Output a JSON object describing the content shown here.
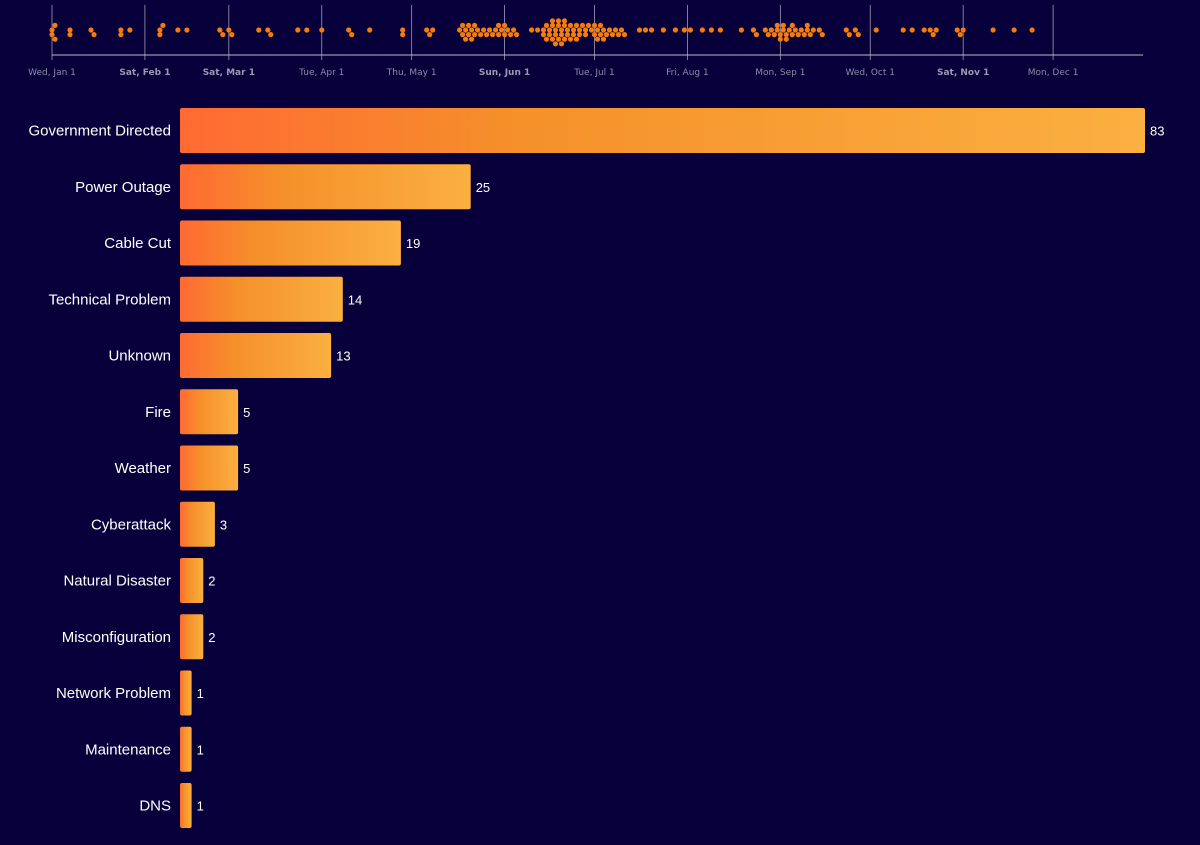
{
  "colors": {
    "background": "#07003a",
    "dot": "#f47b0e",
    "bar_start": "#ff6a33",
    "bar_mid": "#f5902a",
    "bar_end": "#fbb040",
    "gridline": "#b9b9c9",
    "text": "#ffffff"
  },
  "chart_data": [
    {
      "type": "scatter",
      "title": "",
      "x_axis": {
        "kind": "date",
        "range": [
          "2025-01-01",
          "2025-12-31"
        ],
        "ticks": [
          {
            "date": "2025-01-01",
            "label": "Wed, Jan 1",
            "bold": false
          },
          {
            "date": "2025-02-01",
            "label": "Sat, Feb 1",
            "bold": true
          },
          {
            "date": "2025-03-01",
            "label": "Sat, Mar 1",
            "bold": true
          },
          {
            "date": "2025-04-01",
            "label": "Tue, Apr 1",
            "bold": false
          },
          {
            "date": "2025-05-01",
            "label": "Thu, May 1",
            "bold": false
          },
          {
            "date": "2025-06-01",
            "label": "Sun, Jun 1",
            "bold": true
          },
          {
            "date": "2025-07-01",
            "label": "Tue, Jul 1",
            "bold": false
          },
          {
            "date": "2025-08-01",
            "label": "Fri, Aug 1",
            "bold": false
          },
          {
            "date": "2025-09-01",
            "label": "Mon, Sep 1",
            "bold": false
          },
          {
            "date": "2025-10-01",
            "label": "Wed, Oct 1",
            "bold": false
          },
          {
            "date": "2025-11-01",
            "label": "Sat, Nov 1",
            "bold": true
          },
          {
            "date": "2025-12-01",
            "label": "Mon, Dec 1",
            "bold": false
          }
        ]
      },
      "layout": "beeswarm",
      "events": [
        "2025-01-01",
        "2025-01-01",
        "2025-01-02",
        "2025-01-02",
        "2025-01-07",
        "2025-01-07",
        "2025-01-14",
        "2025-01-15",
        "2025-01-24",
        "2025-01-24",
        "2025-01-27",
        "2025-02-06",
        "2025-02-06",
        "2025-02-07",
        "2025-02-12",
        "2025-02-15",
        "2025-02-26",
        "2025-02-27",
        "2025-03-01",
        "2025-03-02",
        "2025-03-11",
        "2025-03-14",
        "2025-03-15",
        "2025-03-24",
        "2025-03-27",
        "2025-04-01",
        "2025-04-10",
        "2025-04-11",
        "2025-04-17",
        "2025-04-28",
        "2025-04-28",
        "2025-05-06",
        "2025-05-07",
        "2025-05-08",
        "2025-05-17",
        "2025-05-18",
        "2025-05-18",
        "2025-05-19",
        "2025-05-19",
        "2025-05-20",
        "2025-05-20",
        "2025-05-21",
        "2025-05-21",
        "2025-05-22",
        "2025-05-22",
        "2025-05-23",
        "2025-05-24",
        "2025-05-25",
        "2025-05-26",
        "2025-05-27",
        "2025-05-28",
        "2025-05-29",
        "2025-05-30",
        "2025-05-30",
        "2025-05-31",
        "2025-06-01",
        "2025-06-01",
        "2025-06-02",
        "2025-06-03",
        "2025-06-04",
        "2025-06-05",
        "2025-06-10",
        "2025-06-12",
        "2025-06-14",
        "2025-06-14",
        "2025-06-15",
        "2025-06-15",
        "2025-06-16",
        "2025-06-16",
        "2025-06-17",
        "2025-06-17",
        "2025-06-17",
        "2025-06-18",
        "2025-06-18",
        "2025-06-18",
        "2025-06-19",
        "2025-06-19",
        "2025-06-19",
        "2025-06-20",
        "2025-06-20",
        "2025-06-20",
        "2025-06-21",
        "2025-06-21",
        "2025-06-21",
        "2025-06-22",
        "2025-06-22",
        "2025-06-23",
        "2025-06-23",
        "2025-06-24",
        "2025-06-24",
        "2025-06-25",
        "2025-06-25",
        "2025-06-26",
        "2025-06-26",
        "2025-06-27",
        "2025-06-28",
        "2025-06-28",
        "2025-06-29",
        "2025-06-30",
        "2025-07-01",
        "2025-07-01",
        "2025-07-02",
        "2025-07-02",
        "2025-07-03",
        "2025-07-03",
        "2025-07-04",
        "2025-07-04",
        "2025-07-05",
        "2025-07-06",
        "2025-07-07",
        "2025-07-08",
        "2025-07-09",
        "2025-07-10",
        "2025-07-11",
        "2025-07-16",
        "2025-07-18",
        "2025-07-20",
        "2025-07-24",
        "2025-07-28",
        "2025-07-31",
        "2025-08-02",
        "2025-08-06",
        "2025-08-09",
        "2025-08-12",
        "2025-08-19",
        "2025-08-23",
        "2025-08-24",
        "2025-08-27",
        "2025-08-28",
        "2025-08-29",
        "2025-08-30",
        "2025-08-31",
        "2025-08-31",
        "2025-09-01",
        "2025-09-01",
        "2025-09-02",
        "2025-09-02",
        "2025-09-03",
        "2025-09-03",
        "2025-09-04",
        "2025-09-05",
        "2025-09-05",
        "2025-09-06",
        "2025-09-07",
        "2025-09-08",
        "2025-09-09",
        "2025-09-10",
        "2025-09-10",
        "2025-09-11",
        "2025-09-12",
        "2025-09-14",
        "2025-09-15",
        "2025-09-23",
        "2025-09-24",
        "2025-09-26",
        "2025-09-27",
        "2025-10-03",
        "2025-10-12",
        "2025-10-15",
        "2025-10-19",
        "2025-10-21",
        "2025-10-22",
        "2025-10-23",
        "2025-10-30",
        "2025-10-31",
        "2025-11-01",
        "2025-11-11",
        "2025-11-18",
        "2025-11-24"
      ]
    },
    {
      "type": "bar",
      "orientation": "horizontal",
      "title": "",
      "xlabel": "",
      "ylabel": "",
      "categories": [
        "Government Directed",
        "Power Outage",
        "Cable Cut",
        "Technical Problem",
        "Unknown",
        "Fire",
        "Weather",
        "Cyberattack",
        "Natural Disaster",
        "Misconfiguration",
        "Network Problem",
        "Maintenance",
        "DNS"
      ],
      "values": [
        83,
        25,
        19,
        14,
        13,
        5,
        5,
        3,
        2,
        2,
        1,
        1,
        1
      ],
      "xlim": [
        0,
        83
      ],
      "data_labels": true,
      "grid": false
    }
  ]
}
